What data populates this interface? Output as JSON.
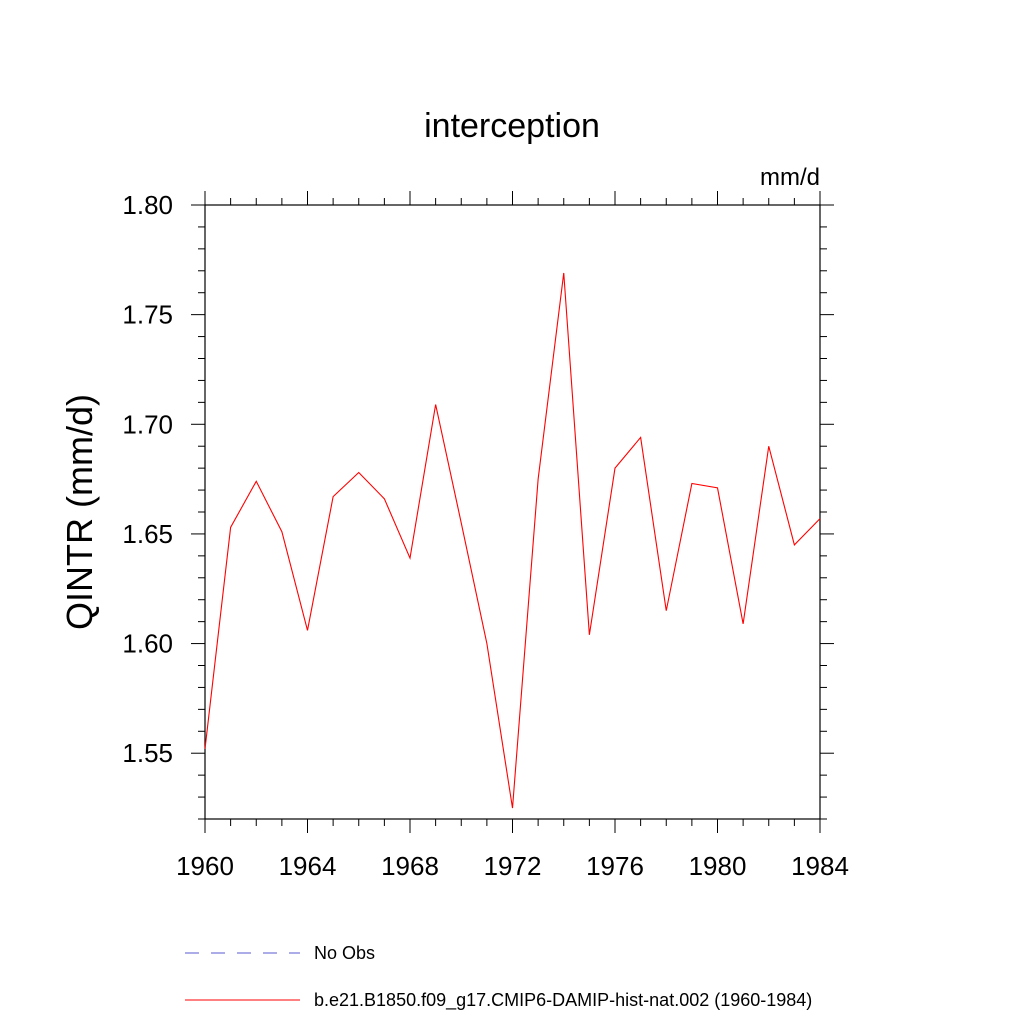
{
  "chart_data": {
    "type": "line",
    "title": "interception",
    "units_label": "mm/d",
    "ylabel": "QINTR  (mm/d)",
    "xlabel": "",
    "xlim": [
      1960,
      1984
    ],
    "ylim": [
      1.52,
      1.8
    ],
    "x_ticks": [
      1960,
      1964,
      1968,
      1972,
      1976,
      1980,
      1984
    ],
    "x_tick_labels": [
      "1960",
      "1964",
      "1968",
      "1972",
      "1976",
      "1980",
      "1984"
    ],
    "y_ticks": [
      1.55,
      1.6,
      1.65,
      1.7,
      1.75,
      1.8
    ],
    "y_tick_labels": [
      "1.55",
      "1.60",
      "1.65",
      "1.70",
      "1.75",
      "1.80"
    ],
    "grid": false,
    "legend_position": "bottom",
    "series": [
      {
        "name": "b.e21.B1850.f09_g17.CMIP6-DAMIP-hist-nat.002 (1960-1984)",
        "color": "#ff0000",
        "style": "solid",
        "x": [
          1960,
          1961,
          1962,
          1963,
          1964,
          1965,
          1966,
          1967,
          1968,
          1969,
          1970,
          1971,
          1972,
          1973,
          1974,
          1975,
          1976,
          1977,
          1978,
          1979,
          1980,
          1981,
          1982,
          1983,
          1984
        ],
        "values": [
          1.552,
          1.653,
          1.674,
          1.651,
          1.606,
          1.667,
          1.678,
          1.666,
          1.639,
          1.709,
          1.655,
          1.6,
          1.525,
          1.675,
          1.769,
          1.604,
          1.68,
          1.694,
          1.615,
          1.673,
          1.671,
          1.609,
          1.69,
          1.645,
          1.657
        ]
      }
    ],
    "legend": [
      {
        "label": "No Obs",
        "color": "#5a5ad0",
        "style": "dashed"
      },
      {
        "label": "b.e21.B1850.f09_g17.CMIP6-DAMIP-hist-nat.002 (1960-1984)",
        "color": "#ff0000",
        "style": "solid"
      }
    ]
  }
}
